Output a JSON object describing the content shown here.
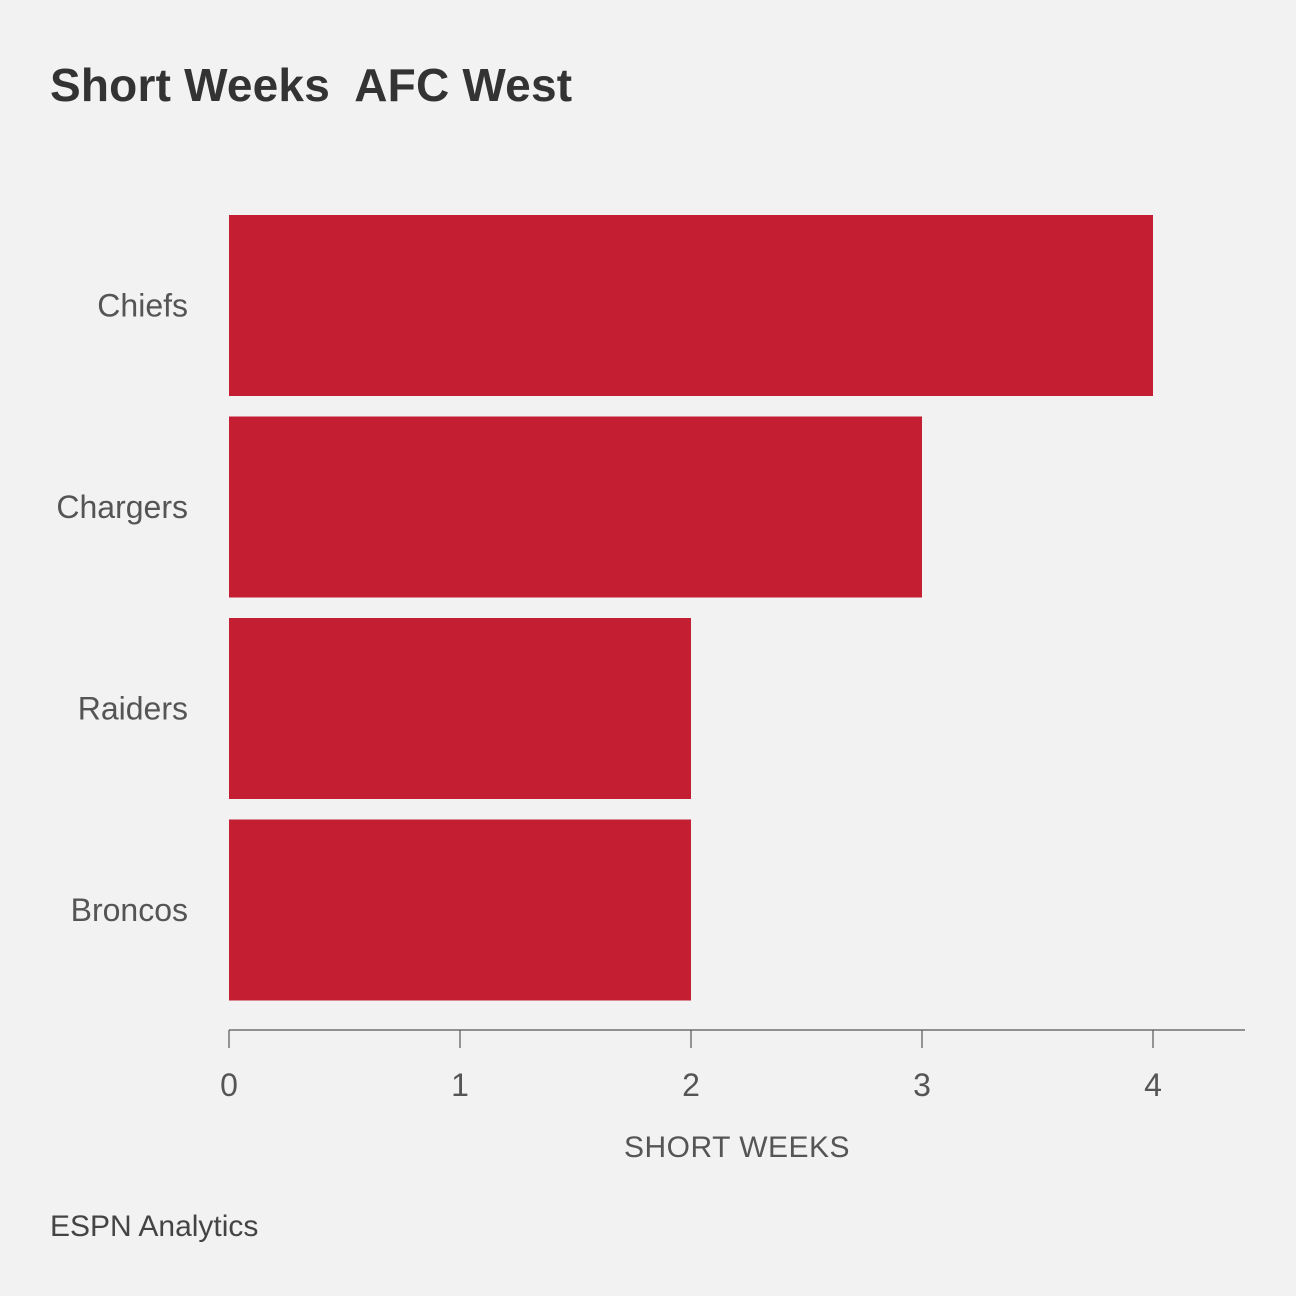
{
  "chart_data": {
    "type": "bar",
    "orientation": "horizontal",
    "title": "Short Weeks  AFC West",
    "categories": [
      "Chiefs",
      "Chargers",
      "Raiders",
      "Broncos"
    ],
    "values": [
      4,
      3,
      2,
      2
    ],
    "xlabel": "SHORT WEEKS",
    "xlim": [
      0,
      4.4
    ],
    "xticks": [
      0,
      1,
      2,
      3,
      4
    ],
    "grid": false,
    "bar_color": "#c41e32"
  },
  "source": "ESPN Analytics"
}
